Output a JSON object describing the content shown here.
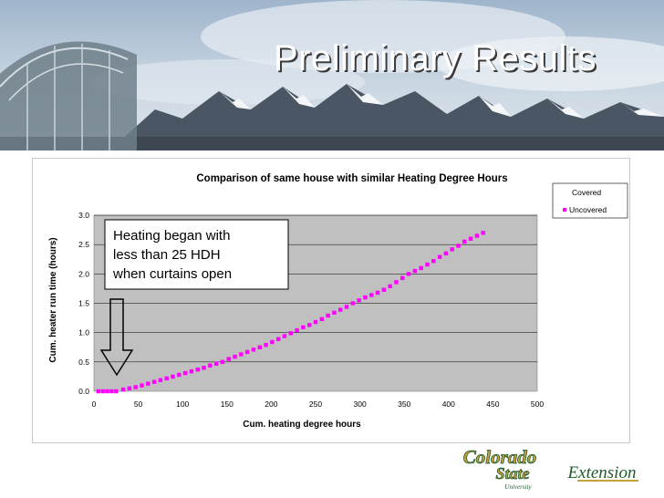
{
  "slide": {
    "title": "Preliminary Results"
  },
  "colors": {
    "plot_bg": "#c0c0c0",
    "series_uncovered": "#ff00ff",
    "logo_gold": "#c8a13a",
    "logo_green": "#1f5a2c"
  },
  "chart_data": {
    "type": "scatter",
    "title": "Comparison of same house with similar Heating Degree Hours",
    "xlabel": "Cum. heating degree hours",
    "ylabel": "Cum. heater run time (hours)",
    "xlim": [
      0,
      500
    ],
    "ylim": [
      0,
      3.0
    ],
    "x_ticks": [
      "0",
      "50",
      "100",
      "150",
      "200",
      "250",
      "300",
      "350",
      "400",
      "450",
      "500"
    ],
    "y_ticks": [
      "0.0",
      "0.5",
      "1.0",
      "1.5",
      "2.0",
      "2.5",
      "3.0"
    ],
    "grid": true,
    "legend_position": "top-right",
    "series": [
      {
        "name": "Covered",
        "x": [],
        "y": []
      },
      {
        "name": "Uncovered",
        "x": [
          5,
          10,
          15,
          20,
          25,
          33,
          40,
          47,
          54,
          61,
          68,
          75,
          82,
          89,
          96,
          103,
          110,
          117,
          124,
          131,
          138,
          145,
          152,
          159,
          166,
          173,
          180,
          187,
          194,
          201,
          208,
          215,
          222,
          229,
          236,
          243,
          250,
          257,
          264,
          271,
          278,
          285,
          292,
          299,
          306,
          313,
          320,
          327,
          334,
          341,
          348,
          355,
          362,
          369,
          376,
          383,
          390,
          397,
          404,
          411,
          418,
          425,
          432,
          439
        ],
        "y": [
          0.0,
          0.0,
          0.0,
          0.0,
          0.0,
          0.03,
          0.05,
          0.07,
          0.1,
          0.13,
          0.16,
          0.19,
          0.22,
          0.25,
          0.28,
          0.31,
          0.34,
          0.37,
          0.4,
          0.44,
          0.47,
          0.5,
          0.55,
          0.59,
          0.63,
          0.67,
          0.71,
          0.75,
          0.79,
          0.84,
          0.89,
          0.94,
          0.99,
          1.04,
          1.09,
          1.13,
          1.18,
          1.23,
          1.29,
          1.34,
          1.39,
          1.44,
          1.5,
          1.55,
          1.6,
          1.64,
          1.68,
          1.73,
          1.79,
          1.86,
          1.93,
          2.0,
          2.05,
          2.1,
          2.16,
          2.22,
          2.29,
          2.35,
          2.42,
          2.48,
          2.55,
          2.6,
          2.65,
          2.7
        ]
      }
    ],
    "annotation": {
      "lines": [
        "Heating began with",
        "less than 25 HDH",
        "when curtains open"
      ]
    }
  },
  "logos": {
    "csu_line1": "Colorado",
    "csu_line2": "State",
    "csu_line3": "University",
    "extension": "Extension"
  }
}
